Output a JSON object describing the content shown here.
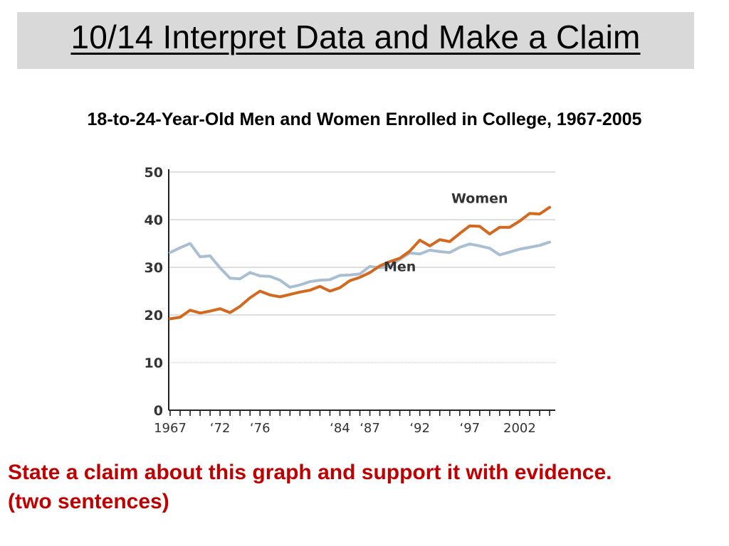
{
  "slide": {
    "title": "10/14 Interpret Data and Make a Claim",
    "prompt_line1": "State a claim about this graph and support it with evidence.",
    "prompt_line2": "(two sentences)"
  },
  "colors": {
    "women": "#d2691e",
    "men": "#a9bfd1",
    "prompt": "#c00000",
    "title_bg": "#d9d9d9"
  },
  "chart_data": {
    "type": "line",
    "title": "18-to-24-Year-Old Men and Women Enrolled in College, 1967-2005",
    "xlabel": "",
    "ylabel": "",
    "ylim": [
      0,
      50
    ],
    "xlim": [
      1967,
      2005
    ],
    "yticks": [
      0,
      10,
      20,
      30,
      40,
      50
    ],
    "ytick_labels": [
      "0",
      "10",
      "20",
      "30",
      "40",
      "50"
    ],
    "xtick_labels": [
      {
        "year": 1967,
        "label": "1967"
      },
      {
        "year": 1972,
        "label": "‘72"
      },
      {
        "year": 1976,
        "label": "‘76"
      },
      {
        "year": 1984,
        "label": "‘84"
      },
      {
        "year": 1987,
        "label": "‘87"
      },
      {
        "year": 1992,
        "label": "‘92"
      },
      {
        "year": 1997,
        "label": "‘97"
      },
      {
        "year": 2002,
        "label": "2002"
      }
    ],
    "grid": true,
    "series": [
      {
        "name": "Women",
        "color": "#d2691e",
        "label_at": [
          1998,
          43.5
        ],
        "points": [
          [
            1967,
            19.2
          ],
          [
            1968,
            19.5
          ],
          [
            1969,
            21.0
          ],
          [
            1970,
            20.4
          ],
          [
            1971,
            20.8
          ],
          [
            1972,
            21.3
          ],
          [
            1973,
            20.5
          ],
          [
            1974,
            21.8
          ],
          [
            1975,
            23.6
          ],
          [
            1976,
            25.0
          ],
          [
            1977,
            24.2
          ],
          [
            1978,
            23.8
          ],
          [
            1979,
            24.3
          ],
          [
            1980,
            24.8
          ],
          [
            1981,
            25.2
          ],
          [
            1982,
            26.0
          ],
          [
            1983,
            25.0
          ],
          [
            1984,
            25.7
          ],
          [
            1985,
            27.2
          ],
          [
            1986,
            27.9
          ],
          [
            1987,
            28.9
          ],
          [
            1988,
            30.3
          ],
          [
            1989,
            31.2
          ],
          [
            1990,
            31.9
          ],
          [
            1991,
            33.4
          ],
          [
            1992,
            35.7
          ],
          [
            1993,
            34.5
          ],
          [
            1994,
            35.8
          ],
          [
            1995,
            35.4
          ],
          [
            1996,
            37.1
          ],
          [
            1997,
            38.7
          ],
          [
            1998,
            38.6
          ],
          [
            1999,
            37.0
          ],
          [
            2000,
            38.4
          ],
          [
            2001,
            38.4
          ],
          [
            2002,
            39.7
          ],
          [
            2003,
            41.3
          ],
          [
            2004,
            41.2
          ],
          [
            2005,
            42.6
          ]
        ]
      },
      {
        "name": "Men",
        "color": "#a9bfd1",
        "label_at": [
          1990,
          29.2
        ],
        "points": [
          [
            1967,
            33.1
          ],
          [
            1968,
            34.1
          ],
          [
            1969,
            35.0
          ],
          [
            1970,
            32.2
          ],
          [
            1971,
            32.4
          ],
          [
            1972,
            29.9
          ],
          [
            1973,
            27.7
          ],
          [
            1974,
            27.6
          ],
          [
            1975,
            28.9
          ],
          [
            1976,
            28.2
          ],
          [
            1977,
            28.1
          ],
          [
            1978,
            27.3
          ],
          [
            1979,
            25.8
          ],
          [
            1980,
            26.3
          ],
          [
            1981,
            27.0
          ],
          [
            1982,
            27.3
          ],
          [
            1983,
            27.4
          ],
          [
            1984,
            28.3
          ],
          [
            1985,
            28.4
          ],
          [
            1986,
            28.6
          ],
          [
            1987,
            30.2
          ],
          [
            1988,
            29.9
          ],
          [
            1989,
            30.2
          ],
          [
            1990,
            31.7
          ],
          [
            1991,
            33.0
          ],
          [
            1992,
            32.8
          ],
          [
            1993,
            33.6
          ],
          [
            1994,
            33.3
          ],
          [
            1995,
            33.1
          ],
          [
            1996,
            34.2
          ],
          [
            1997,
            34.9
          ],
          [
            1998,
            34.5
          ],
          [
            1999,
            34.0
          ],
          [
            2000,
            32.6
          ],
          [
            2001,
            33.2
          ],
          [
            2002,
            33.8
          ],
          [
            2003,
            34.2
          ],
          [
            2004,
            34.6
          ],
          [
            2005,
            35.3
          ]
        ]
      }
    ]
  }
}
